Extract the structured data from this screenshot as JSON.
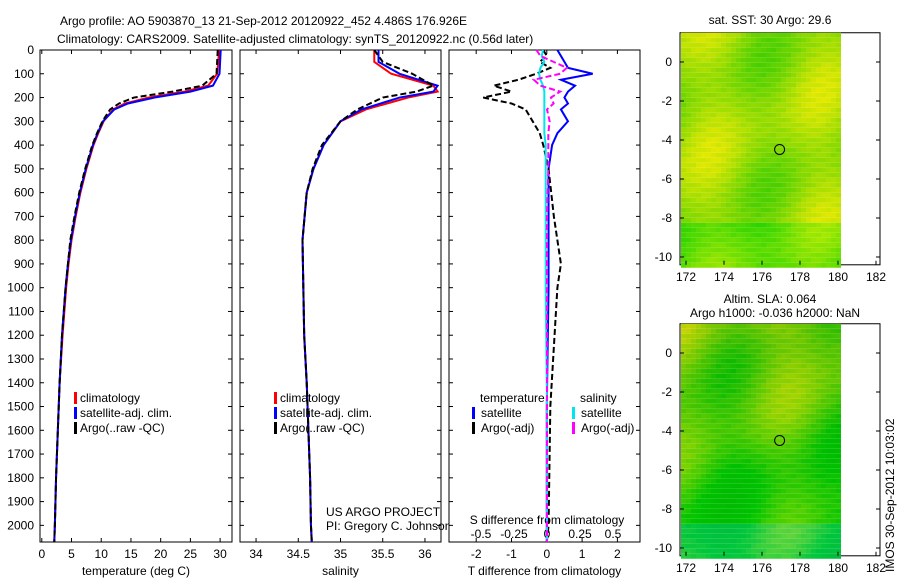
{
  "title_line1": "Argo profile: AO 5903870_13 21-Sep-2012 20120922_452 4.486S 176.926E",
  "title_line2": "Climatology: CARS2009. Satellite-adjusted climatology: synTS_20120922.nc (0.56d later)",
  "colors": {
    "climatology": "#ff0000",
    "satellite": "#0000ff",
    "argo": "#000000",
    "s_satellite": "#00e5ee",
    "s_argo": "#ff00ff"
  },
  "chart_data": [
    {
      "type": "line",
      "name": "temperature",
      "xlabel": "temperature (deg C)",
      "ylabel": "",
      "xlim": [
        -0.3,
        32
      ],
      "ylim": [
        2070,
        0
      ],
      "xticks": [
        0,
        5,
        10,
        15,
        20,
        25,
        30
      ],
      "yticks": [
        0,
        100,
        200,
        300,
        400,
        500,
        600,
        700,
        800,
        900,
        1000,
        1100,
        1200,
        1300,
        1400,
        1500,
        1600,
        1700,
        1800,
        1900,
        2000
      ],
      "legend": [
        "climatology",
        "satellite-adj. clim.",
        "Argo(..raw -QC)"
      ],
      "depth": [
        0,
        50,
        100,
        150,
        175,
        200,
        225,
        250,
        300,
        350,
        400,
        500,
        600,
        700,
        800,
        900,
        1000,
        1200,
        1400,
        1600,
        1800,
        2000,
        2070
      ],
      "series": [
        {
          "name": "climatology",
          "values": [
            29.8,
            29.7,
            29.5,
            28,
            24,
            18,
            14,
            12,
            10.4,
            9.5,
            8.7,
            7.5,
            6.5,
            5.7,
            5.0,
            4.5,
            4.1,
            3.5,
            3.0,
            2.7,
            2.4,
            2.2,
            2.1
          ]
        },
        {
          "name": "satellite-adj. clim.",
          "values": [
            30.1,
            30.0,
            29.9,
            28.8,
            25,
            19,
            14.5,
            12.2,
            10.3,
            9.4,
            8.6,
            7.4,
            6.4,
            5.6,
            4.9,
            4.4,
            4.0,
            3.4,
            3.0,
            2.7,
            2.4,
            2.2,
            2.1
          ]
        },
        {
          "name": "Argo(..raw -QC)",
          "values": [
            29.6,
            29.5,
            29.4,
            27,
            22,
            15.5,
            13,
            11.5,
            10.2,
            9.3,
            8.5,
            7.3,
            6.3,
            5.5,
            4.8,
            4.4,
            4.0,
            3.4,
            3.0,
            2.7,
            2.4,
            2.2,
            2.1
          ]
        }
      ]
    },
    {
      "type": "line",
      "name": "salinity",
      "xlabel": "salinity",
      "xlim": [
        33.81,
        36.19
      ],
      "ylim": [
        2070,
        0
      ],
      "xticks": [
        34,
        34.5,
        35,
        35.5,
        36
      ],
      "xticklabels": [
        "34",
        "34.5",
        "35",
        "35.5",
        "36"
      ],
      "legend": [
        "climatology",
        "satellite-adj. clim.",
        "Argo(..raw -QC)"
      ],
      "annotation": [
        "US ARGO PROJECT",
        "PI: Gregory C. Johnson"
      ],
      "depth": [
        0,
        50,
        100,
        150,
        175,
        200,
        250,
        300,
        400,
        500,
        600,
        800,
        1000,
        1200,
        1400,
        1600,
        1800,
        2000,
        2070
      ],
      "series": [
        {
          "name": "climatology",
          "values": [
            35.4,
            35.4,
            35.6,
            36.1,
            36.15,
            35.8,
            35.3,
            35.0,
            34.8,
            34.68,
            34.6,
            34.55,
            34.56,
            34.57,
            34.6,
            34.62,
            34.64,
            34.65,
            34.66
          ]
        },
        {
          "name": "satellite-adj. clim.",
          "values": [
            35.45,
            35.45,
            35.7,
            36.15,
            36.1,
            35.7,
            35.25,
            35.0,
            34.8,
            34.68,
            34.6,
            34.55,
            34.56,
            34.57,
            34.6,
            34.62,
            34.64,
            34.65,
            34.66
          ]
        },
        {
          "name": "Argo(..raw -QC)",
          "values": [
            35.4,
            35.5,
            35.85,
            36.1,
            35.9,
            35.5,
            35.2,
            35.0,
            34.78,
            34.67,
            34.6,
            34.55,
            34.56,
            34.57,
            34.6,
            34.62,
            34.64,
            34.65,
            34.66
          ]
        }
      ]
    },
    {
      "type": "line",
      "name": "difference",
      "xlabel": "T difference from climatology",
      "x2label": "S difference from climatology",
      "xlim": [
        -2.77,
        2.64
      ],
      "x2lim": [
        -0.5,
        0.5
      ],
      "ylim": [
        2070,
        0
      ],
      "xticks": [
        -2,
        -1,
        0,
        1,
        2
      ],
      "x2ticks": [
        -0.5,
        -0.25,
        0,
        0.25,
        0.5
      ],
      "x2ticklabels": [
        "-0.5",
        "-0.25",
        "0",
        "0.25",
        "0.5"
      ],
      "legend": {
        "temperature_header": "temperature",
        "salinity_header": "salinity",
        "t_sat": "satellite",
        "t_argo": "Argo(-adj)",
        "s_sat": "satellite",
        "s_argo": "Argo(-adj)"
      },
      "depth": [
        0,
        25,
        50,
        75,
        100,
        125,
        150,
        175,
        200,
        225,
        250,
        300,
        350,
        400,
        500,
        700,
        900,
        1000,
        1500,
        2000,
        2070
      ],
      "series": [
        {
          "name": "T satellite",
          "axis": "T",
          "values": [
            0.3,
            0.4,
            0.5,
            0.6,
            1.3,
            0.4,
            0.8,
            0.6,
            0.5,
            0.6,
            0.4,
            0.6,
            0.3,
            0.15,
            0.05,
            0.05,
            0.05,
            0.05,
            0.0,
            0.0,
            0.0
          ]
        },
        {
          "name": "T Argo(-adj)",
          "axis": "T",
          "values": [
            -0.1,
            0.0,
            -0.2,
            0.1,
            -0.3,
            -0.8,
            -1.5,
            -1.0,
            -1.8,
            -1.0,
            -0.6,
            -0.4,
            -0.2,
            -0.1,
            0.05,
            0.2,
            0.4,
            0.3,
            0.1,
            0.05,
            0.0
          ]
        },
        {
          "name": "S satellite",
          "axis": "S",
          "values": [
            -0.03,
            -0.04,
            -0.02,
            -0.05,
            -0.06,
            -0.05,
            -0.03,
            -0.02,
            -0.02,
            -0.02,
            -0.02,
            -0.02,
            -0.02,
            -0.01,
            -0.01,
            -0.01,
            -0.01,
            -0.01,
            0.0,
            0.0,
            0.0
          ]
        },
        {
          "name": "S Argo(-adj)",
          "axis": "S",
          "values": [
            -0.08,
            -0.05,
            0.05,
            0.15,
            0.1,
            -0.1,
            -0.05,
            0.1,
            0.03,
            0.05,
            0.0,
            0.02,
            0.01,
            0.01,
            0.01,
            0.0,
            0.0,
            0.0,
            0.0,
            0.0,
            0.0
          ]
        }
      ]
    },
    {
      "type": "heatmap",
      "name": "sst-map",
      "title": "sat. SST: 30 Argo: 29.6",
      "xlim": [
        172,
        182
      ],
      "ylim": [
        -10.4,
        1.5
      ],
      "xticks": [
        172,
        174,
        176,
        178,
        180,
        182
      ],
      "yticks": [
        0,
        -2,
        -4,
        -6,
        -8,
        -10
      ],
      "argo_position": [
        176.926,
        -4.486
      ]
    },
    {
      "type": "heatmap",
      "name": "sla-map",
      "title_line1": "Altim. SLA: 0.064",
      "title_line2": "Argo h1000: -0.036 h2000: NaN",
      "xlim": [
        172,
        182
      ],
      "ylim": [
        -10.4,
        1.5
      ],
      "xticks": [
        172,
        174,
        176,
        178,
        180,
        182
      ],
      "yticks": [
        0,
        -2,
        -4,
        -6,
        -8,
        -10
      ],
      "argo_position": [
        176.926,
        -4.486
      ]
    }
  ],
  "footer_stamp": "IMOS 30-Sep-2012 10:03:02"
}
